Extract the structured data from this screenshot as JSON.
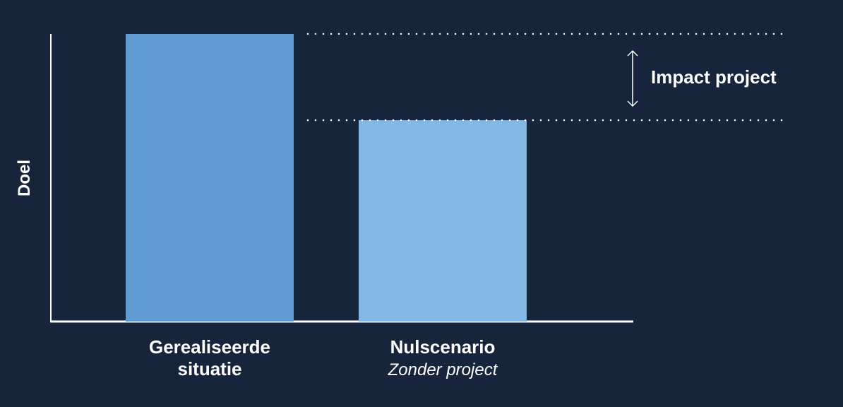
{
  "chart_data": {
    "type": "bar",
    "y_label": "Doel",
    "categories": [
      "Gerealiseerde situatie",
      "Nulscenario"
    ],
    "category_notes": [
      null,
      "Zonder project"
    ],
    "values": [
      100,
      70
    ],
    "colors": [
      "#6199d1",
      "#83b8e6"
    ],
    "ylim": [
      0,
      100
    ],
    "annotation": "Impact project"
  }
}
